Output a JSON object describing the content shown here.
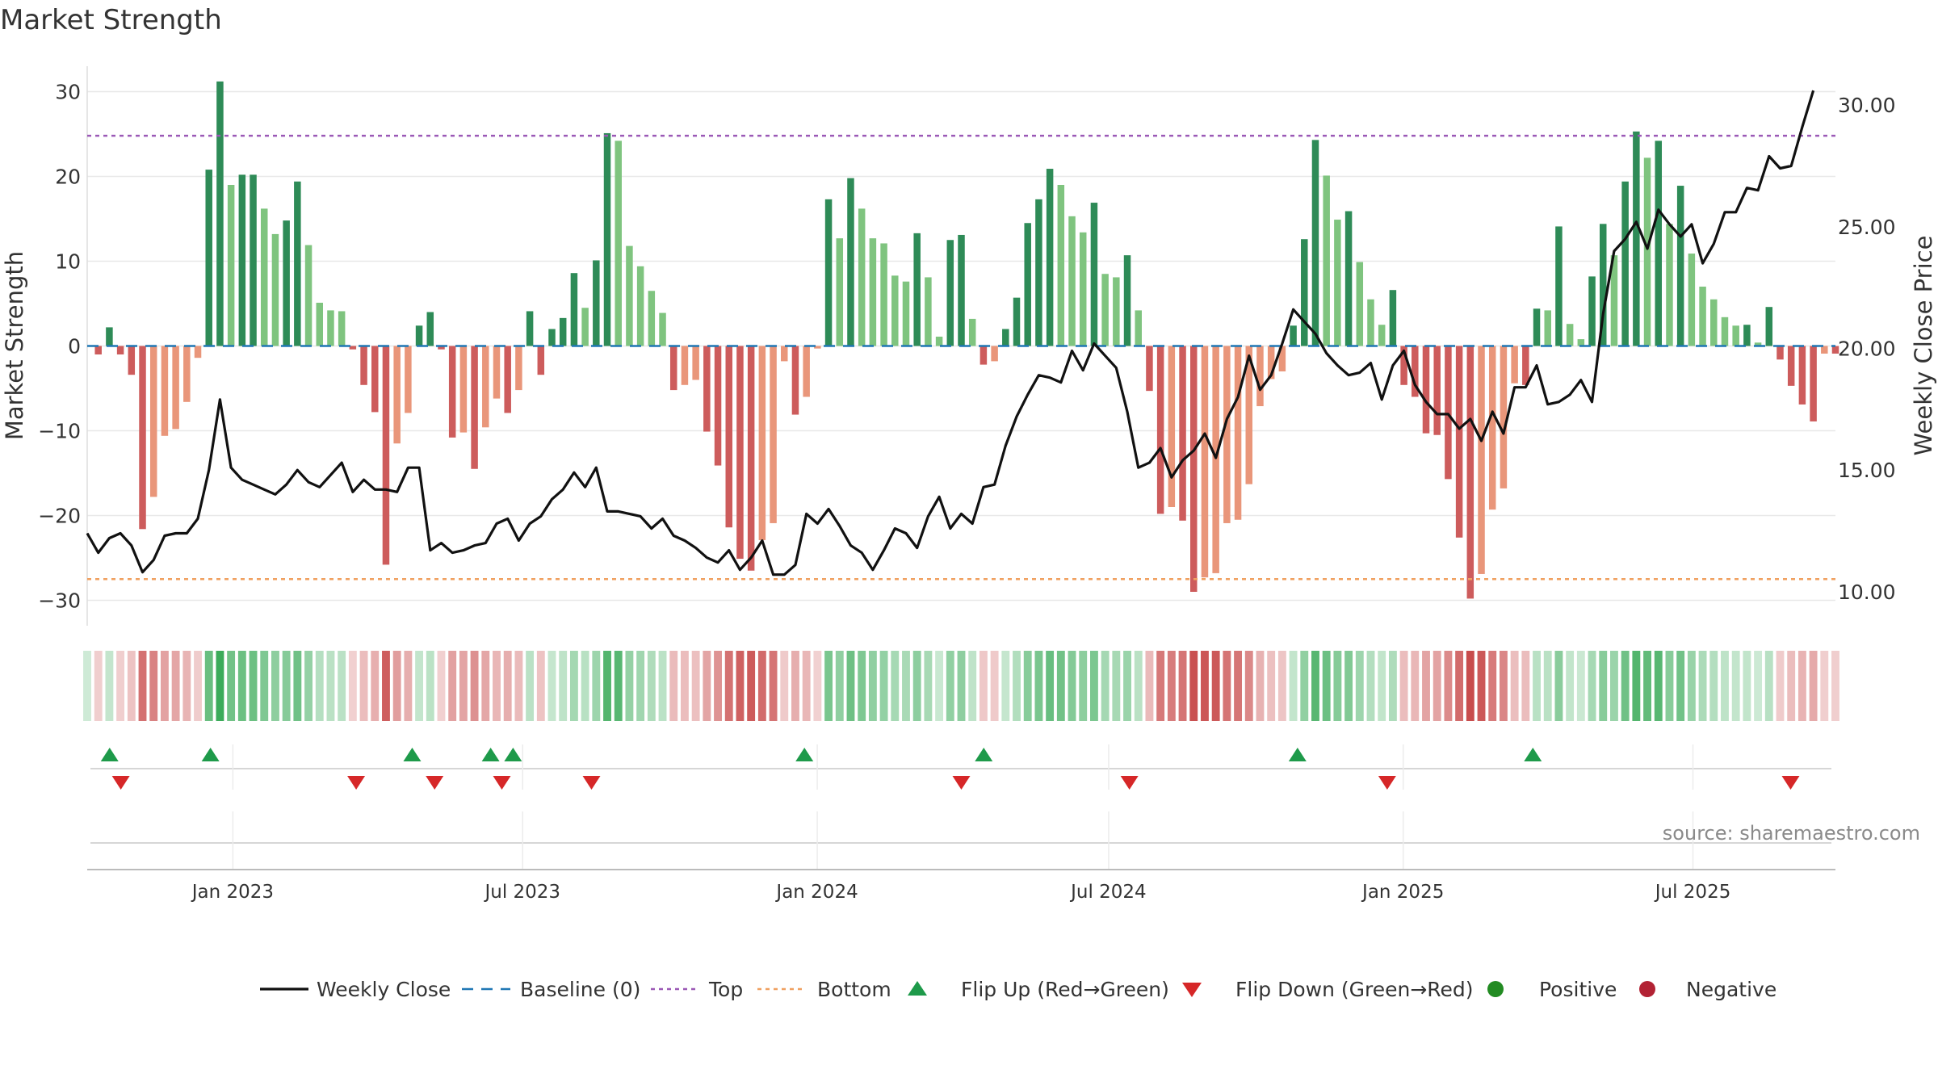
{
  "chart_data": {
    "type": "bar",
    "title": "Market Strength",
    "ylabel_left": "Market Strength",
    "ylabel_right": "Weekly Close Price",
    "source_text": "source: sharemaestro.com",
    "ylim_left": [
      -33,
      33
    ],
    "ylim_right": [
      8.6,
      31.6
    ],
    "yticks_left": [
      30,
      20,
      10,
      0,
      -10,
      -20,
      -30
    ],
    "yticks_left_labels": [
      "30",
      "20",
      "10",
      "0",
      "−10",
      "−20",
      "−30"
    ],
    "yticks_right": [
      30,
      25,
      20,
      15,
      10
    ],
    "yticks_right_labels": [
      "30.00",
      "25.00",
      "20.00",
      "15.00",
      "10.00"
    ],
    "top_line": 24.8,
    "bottom_line": -27.5,
    "x_start": "2022-10-02",
    "x_end": "2025-09-28",
    "x_tick_labels": [
      {
        "date": "2023-01-01",
        "label": "Jan 2023"
      },
      {
        "date": "2023-07-01",
        "label": "Jul 2023"
      },
      {
        "date": "2024-01-01",
        "label": "Jan 2024"
      },
      {
        "date": "2024-07-01",
        "label": "Jul 2024"
      },
      {
        "date": "2025-01-01",
        "label": "Jan 2025"
      },
      {
        "date": "2025-07-01",
        "label": "Jul 2025"
      }
    ],
    "strength": [
      0,
      -1,
      2.2,
      -1,
      -3.4,
      -21.6,
      -17.8,
      -10.6,
      -9.8,
      -6.6,
      -1.4,
      20.8,
      31.2,
      19,
      20.2,
      20.2,
      16.2,
      13.2,
      14.8,
      19.4,
      11.9,
      5.1,
      4.2,
      4.1,
      -0.4,
      -4.6,
      -7.8,
      -25.8,
      -11.5,
      -7.9,
      2.4,
      4,
      -0.4,
      -10.8,
      -10.2,
      -14.5,
      -9.6,
      -6.2,
      -7.9,
      -5.2,
      4.1,
      -3.4,
      2,
      3.3,
      8.6,
      4.5,
      10.1,
      25.1,
      24.2,
      11.8,
      9.4,
      6.5,
      3.9,
      -5.2,
      -4.6,
      -4,
      -10.1,
      -14.1,
      -21.4,
      -25.1,
      -26.5,
      -22.9,
      -20.9,
      -1.8,
      -8.1,
      -6,
      -0.3,
      17.3,
      12.7,
      19.8,
      16.2,
      12.7,
      12.1,
      8.3,
      7.6,
      13.3,
      8.1,
      1.1,
      12.5,
      13.1,
      3.2,
      -2.2,
      -1.8,
      2,
      5.7,
      14.5,
      17.3,
      20.9,
      19,
      15.3,
      13.4,
      16.9,
      8.5,
      8.1,
      10.7,
      4.2,
      -5.3,
      -19.8,
      -19,
      -20.6,
      -29,
      -27.3,
      -26.8,
      -20.9,
      -20.5,
      -16.3,
      -7.1,
      -3.9,
      -3,
      2.4,
      12.6,
      24.3,
      20.1,
      14.9,
      15.9,
      9.9,
      5.5,
      2.5,
      6.6,
      -4.6,
      -6,
      -10.3,
      -10.5,
      -15.7,
      -22.6,
      -29.8,
      -26.9,
      -19.3,
      -16.8,
      -4.4,
      -4.6,
      4.4,
      4.2,
      14.1,
      2.6,
      0.8,
      8.2,
      14.4,
      10.7,
      19.4,
      25.3,
      22.2,
      24.2,
      14.4,
      18.9,
      10.9,
      7,
      5.5,
      3.4,
      2.4,
      2.5,
      0.4,
      4.6,
      -1.6,
      -4.7,
      -6.9,
      -8.9,
      -0.9,
      -0.9
    ],
    "price": [
      12.4,
      11.6,
      12.2,
      12.4,
      11.9,
      10.8,
      11.3,
      12.3,
      12.4,
      12.4,
      13,
      15,
      17.9,
      15.1,
      14.6,
      14.4,
      14.2,
      14,
      14.4,
      15,
      14.5,
      14.3,
      14.8,
      15.3,
      14.1,
      14.6,
      14.2,
      14.2,
      14.1,
      15.1,
      15.1,
      11.7,
      12,
      11.6,
      11.7,
      11.9,
      12,
      12.8,
      13,
      12.1,
      12.8,
      13.1,
      13.8,
      14.2,
      14.9,
      14.3,
      15.1,
      13.3,
      13.3,
      13.2,
      13.1,
      12.6,
      13,
      12.3,
      12.1,
      11.8,
      11.4,
      11.2,
      11.7,
      10.9,
      11.4,
      12.1,
      10.7,
      10.7,
      11.1,
      13.2,
      12.8,
      13.4,
      12.7,
      11.9,
      11.6,
      10.9,
      11.7,
      12.6,
      12.4,
      11.8,
      13.1,
      13.9,
      12.6,
      13.2,
      12.8,
      14.3,
      14.4,
      16,
      17.2,
      18.1,
      18.9,
      18.8,
      18.6,
      19.9,
      19.1,
      20.2,
      19.7,
      19.2,
      17.4,
      15.1,
      15.3,
      15.9,
      14.7,
      15.4,
      15.8,
      16.5,
      15.5,
      17.1,
      18,
      19.7,
      18.3,
      18.9,
      20.2,
      21.6,
      21.1,
      20.6,
      19.8,
      19.3,
      18.9,
      19,
      19.4,
      17.9,
      19.3,
      19.9,
      18.5,
      17.8,
      17.3,
      17.3,
      16.7,
      17.1,
      16.2,
      17.4,
      16.5,
      18.4,
      18.4,
      19.3,
      17.7,
      17.8,
      18.1,
      18.7,
      17.8,
      21.4,
      24,
      24.5,
      25.2,
      24.1,
      25.7,
      25.1,
      24.6,
      25.1,
      23.5,
      24.3,
      25.6,
      25.6,
      26.6,
      26.5,
      27.9,
      27.4,
      27.5,
      29.1,
      30.6
    ],
    "flips_up": [
      "2022-10-16",
      "2022-12-18",
      "2023-04-23",
      "2023-06-11",
      "2023-06-25",
      "2023-12-24",
      "2024-04-14",
      "2024-10-27",
      "2025-03-23"
    ],
    "flips_down": [
      "2022-10-23",
      "2023-03-19",
      "2023-05-07",
      "2023-06-18",
      "2023-08-13",
      "2024-03-31",
      "2024-07-14",
      "2024-12-22",
      "2025-08-31"
    ],
    "legend": [
      {
        "key": "weekly_close",
        "label": "Weekly Close"
      },
      {
        "key": "baseline",
        "label": "Baseline (0)"
      },
      {
        "key": "top",
        "label": "Top"
      },
      {
        "key": "bottom",
        "label": "Bottom"
      },
      {
        "key": "flip_up",
        "label": "Flip Up (Red→Green)"
      },
      {
        "key": "flip_down",
        "label": "Flip Down (Green→Red)"
      },
      {
        "key": "positive",
        "label": "Positive"
      },
      {
        "key": "negative",
        "label": "Negative"
      }
    ],
    "colors": {
      "pos_strong": "#2e8b57",
      "pos_weak": "#7fc47f",
      "neg_strong": "#cd5c5c",
      "neg_weak": "#e9967a",
      "price_line": "#111111",
      "baseline": "#1f77b4",
      "top_line": "#9b59b6",
      "bottom_line": "#f0a060",
      "flip_up": "#1e9a4a",
      "flip_down": "#d62728",
      "positive_dot": "#228b22",
      "negative_dot": "#b22234",
      "grid": "#e8e8e8",
      "axis_text": "#333333",
      "source_text": "#8a8a8a"
    }
  }
}
